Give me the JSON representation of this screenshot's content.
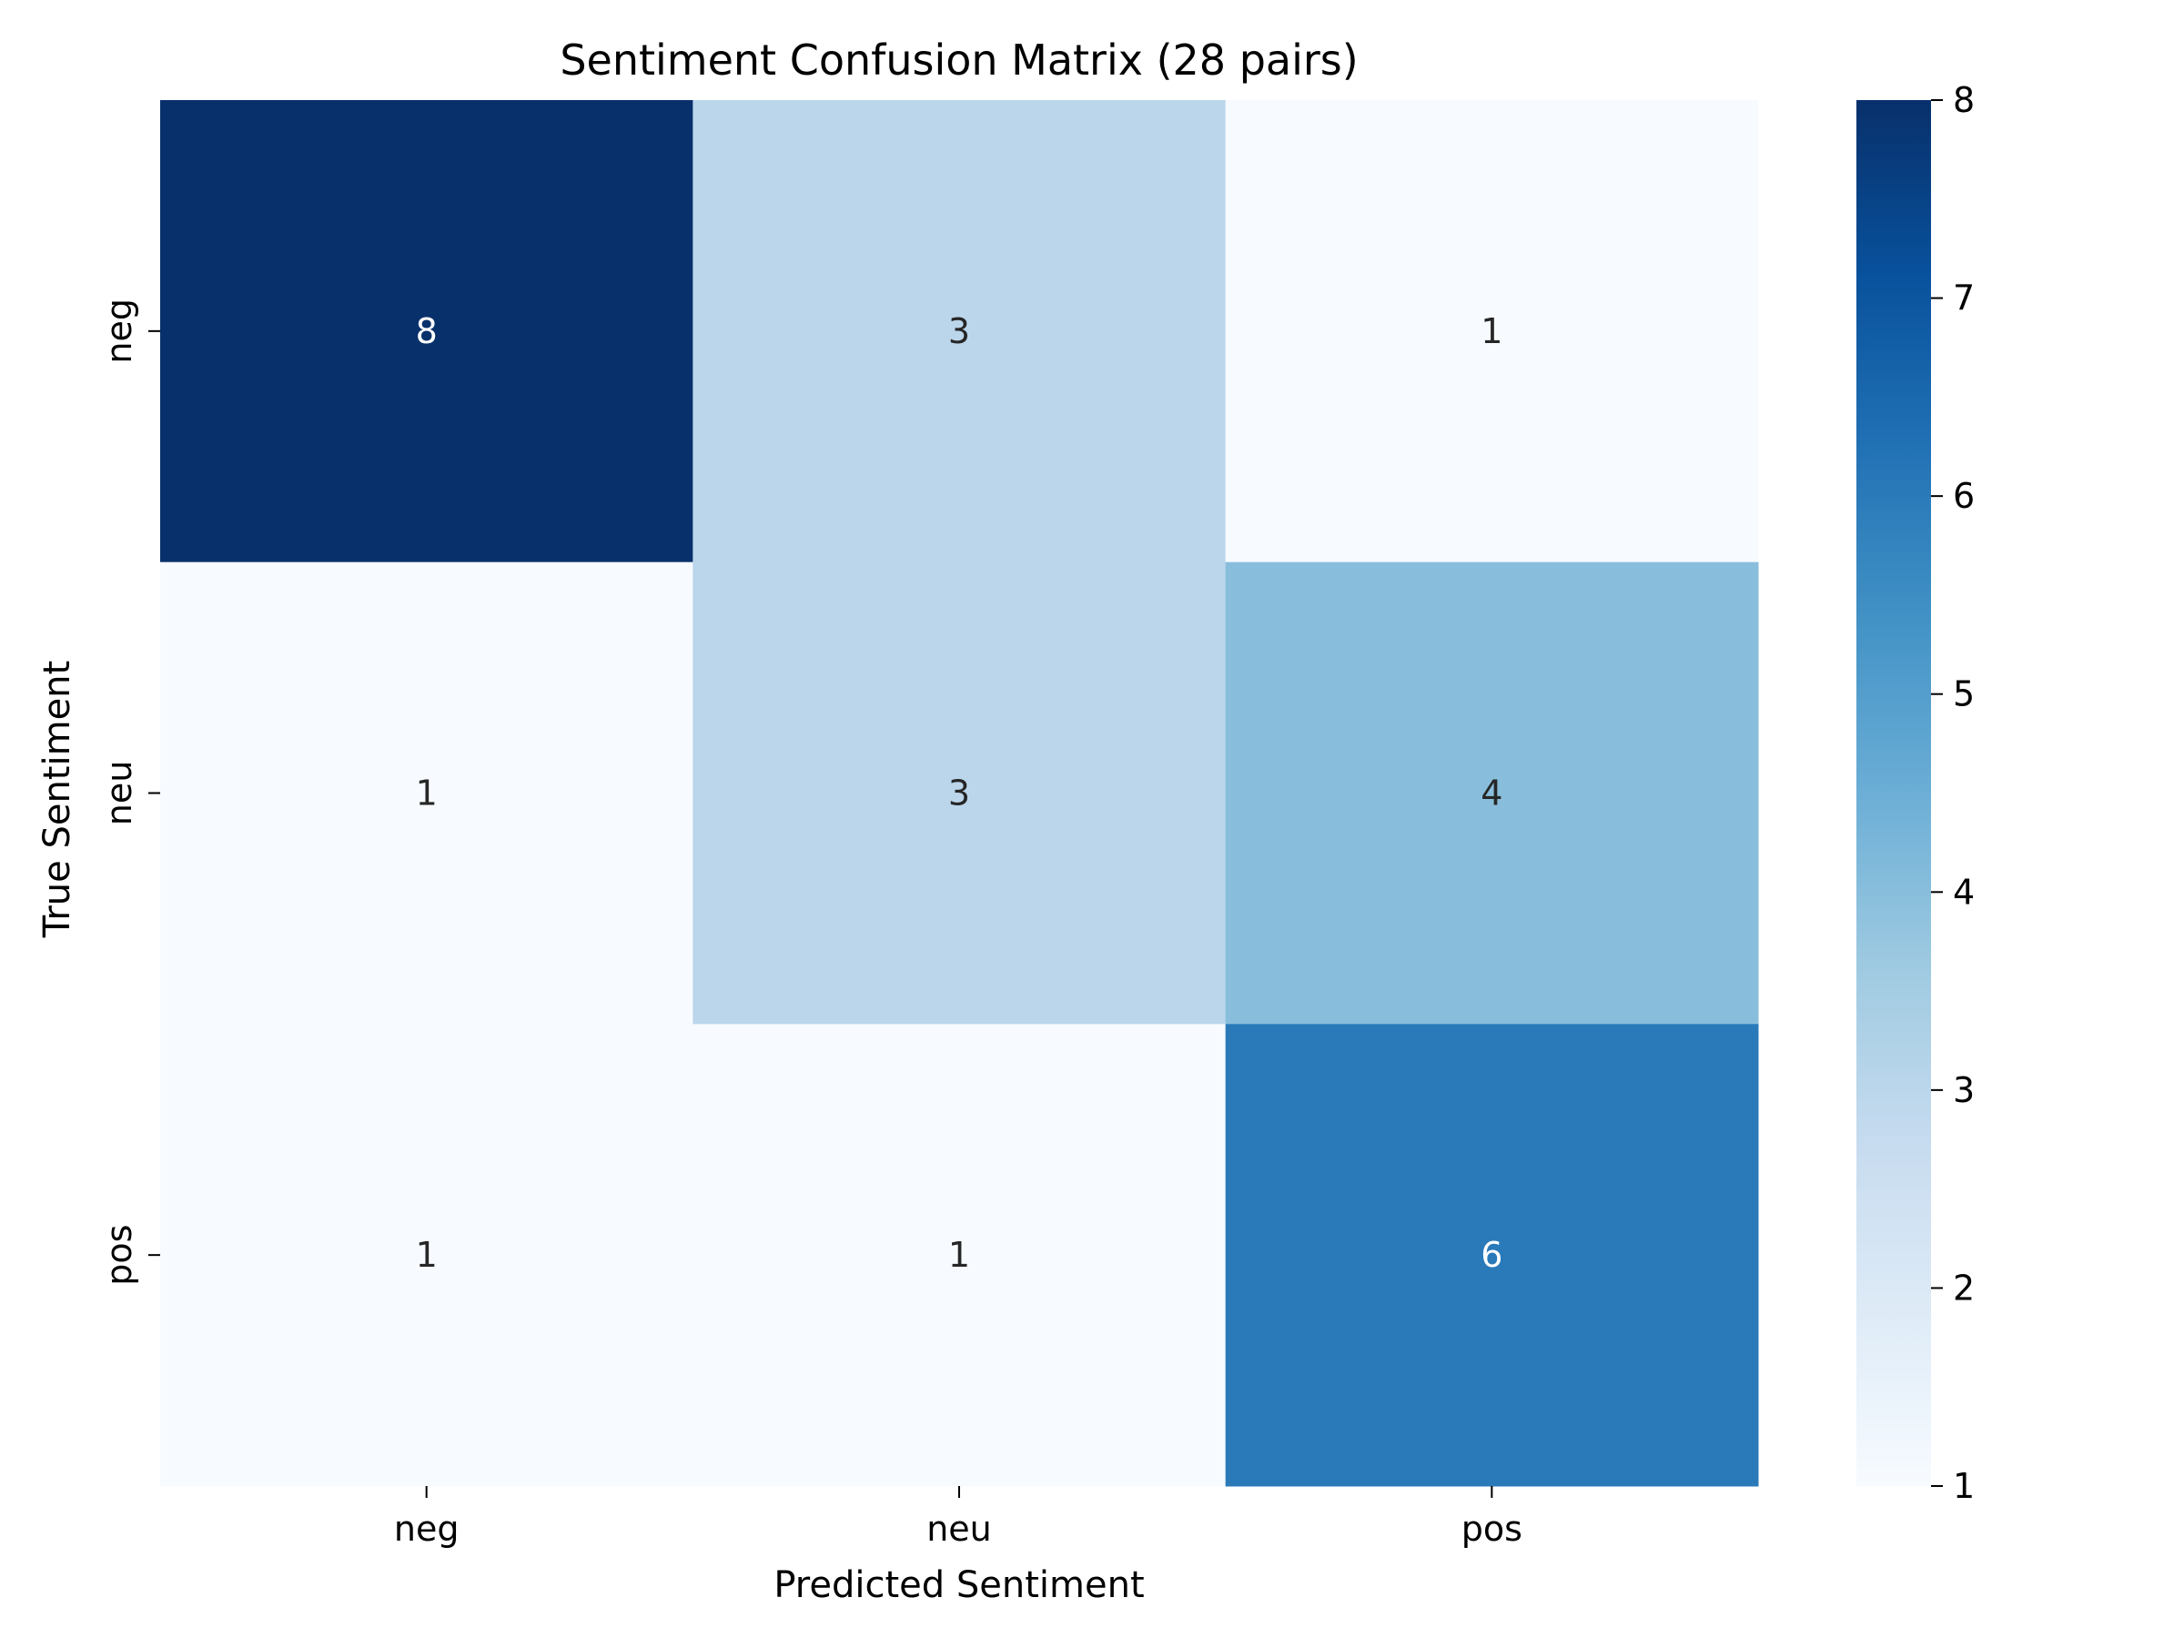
{
  "chart_data": {
    "type": "heatmap",
    "title": "Sentiment Confusion Matrix (28 pairs)",
    "xlabel": "Predicted Sentiment",
    "ylabel": "True Sentiment",
    "x_categories": [
      "neg",
      "neu",
      "pos"
    ],
    "y_categories": [
      "neg",
      "neu",
      "pos"
    ],
    "values": [
      [
        8,
        3,
        1
      ],
      [
        1,
        3,
        4
      ],
      [
        1,
        1,
        6
      ]
    ],
    "colorbar": {
      "min": 1,
      "max": 8,
      "ticks": [
        "1",
        "2",
        "3",
        "4",
        "5",
        "6",
        "7",
        "8"
      ],
      "colormap": "Blues"
    },
    "colors": {
      "low": "#f7fbff",
      "high": "#08306b",
      "text_dark": "#262626",
      "text_light": "#ffffff"
    }
  }
}
